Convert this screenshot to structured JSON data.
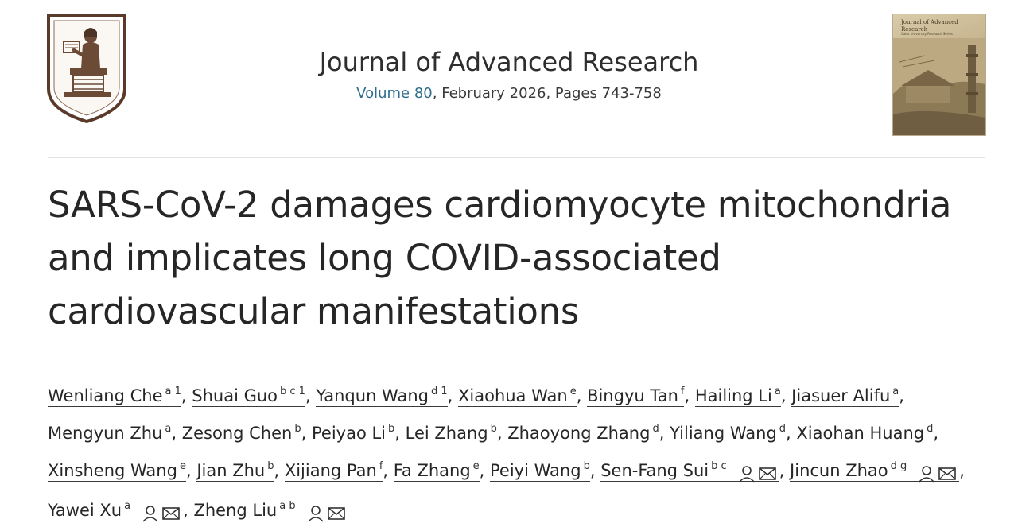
{
  "journal": {
    "name": "Journal of Advanced Research",
    "volume_label": "Volume 80",
    "issue_details": ", February 2026, Pages 743-758"
  },
  "cover": {
    "title": "Journal of Advanced Research",
    "subtitle": "Cairo University Research Series"
  },
  "article": {
    "title": "SARS-CoV-2 damages cardiomyocyte mitochondria and implicates long COVID-associated cardiovascular manifestations"
  },
  "authors": [
    {
      "name": "Wenliang Che",
      "aff": "a 1",
      "corresponding": false
    },
    {
      "name": "Shuai Guo",
      "aff": "b c 1",
      "corresponding": false
    },
    {
      "name": "Yanqun Wang",
      "aff": "d 1",
      "corresponding": false
    },
    {
      "name": "Xiaohua Wan",
      "aff": "e",
      "corresponding": false
    },
    {
      "name": "Bingyu Tan",
      "aff": "f",
      "corresponding": false
    },
    {
      "name": "Hailing Li",
      "aff": "a",
      "corresponding": false
    },
    {
      "name": "Jiasuer Alifu",
      "aff": "a",
      "corresponding": false
    },
    {
      "name": "Mengyun Zhu",
      "aff": "a",
      "corresponding": false
    },
    {
      "name": "Zesong Chen",
      "aff": "b",
      "corresponding": false
    },
    {
      "name": "Peiyao Li",
      "aff": "b",
      "corresponding": false
    },
    {
      "name": "Lei Zhang",
      "aff": "b",
      "corresponding": false
    },
    {
      "name": "Zhaoyong Zhang",
      "aff": "d",
      "corresponding": false
    },
    {
      "name": "Yiliang Wang",
      "aff": "d",
      "corresponding": false
    },
    {
      "name": "Xiaohan Huang",
      "aff": "d",
      "corresponding": false
    },
    {
      "name": "Xinsheng Wang",
      "aff": "e",
      "corresponding": false
    },
    {
      "name": "Jian Zhu",
      "aff": "b",
      "corresponding": false
    },
    {
      "name": "Xijiang Pan",
      "aff": "f",
      "corresponding": false
    },
    {
      "name": "Fa Zhang",
      "aff": "e",
      "corresponding": false
    },
    {
      "name": "Peiyi Wang",
      "aff": "b",
      "corresponding": false
    },
    {
      "name": "Sen-Fang Sui",
      "aff": "b c",
      "corresponding": true
    },
    {
      "name": "Jincun Zhao",
      "aff": "d g",
      "corresponding": true
    },
    {
      "name": "Yawei Xu",
      "aff": "a",
      "corresponding": true
    },
    {
      "name": "Zheng Liu",
      "aff": "a b",
      "corresponding": true
    }
  ],
  "icons": {
    "publisher_logo": "publisher-seal-icon",
    "person": "person-icon",
    "email": "envelope-icon"
  }
}
